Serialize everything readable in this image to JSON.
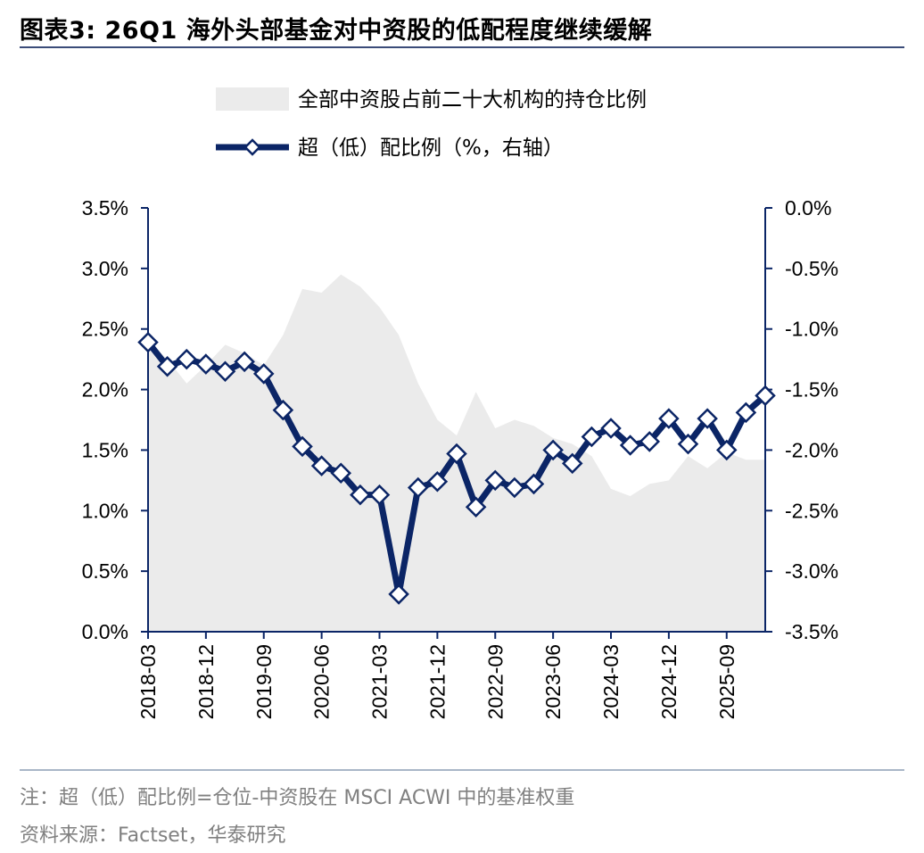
{
  "header": {
    "title": "图表3:  26Q1 海外头部基金对中资股的低配程度继续缓解"
  },
  "footer": {
    "note": "注：超（低）配比例=仓位-中资股在 MSCI ACWI 中的基准权重",
    "source": "资料来源：Factset，华泰研究"
  },
  "colors": {
    "area": "#ebebeb",
    "line": "#0b2566",
    "marker_fill": "#ffffff",
    "axis": "#0b2566",
    "title_rule": "#3b4c79",
    "footer_rule": "#a9b6c7"
  },
  "chart_data": {
    "type": "area+line",
    "legend": [
      "全部中资股占前二十大机构的持仓比例",
      "超（低）配比例（%，右轴）"
    ],
    "legend_position": "top",
    "grid": false,
    "x": [
      "2018-03",
      "2018-06",
      "2018-09",
      "2018-12",
      "2019-03",
      "2019-06",
      "2019-09",
      "2019-12",
      "2020-03",
      "2020-06",
      "2020-09",
      "2020-12",
      "2021-03",
      "2021-06",
      "2021-09",
      "2021-12",
      "2022-03",
      "2022-06",
      "2022-09",
      "2022-12",
      "2023-03",
      "2023-06",
      "2023-09",
      "2023-12",
      "2024-03",
      "2024-06",
      "2024-09",
      "2024-12",
      "2025-03",
      "2025-06",
      "2025-09",
      "2025-12",
      "2026-03"
    ],
    "x_tick_labels": [
      "2018-03",
      "2018-12",
      "2019-09",
      "2020-06",
      "2021-03",
      "2021-12",
      "2022-09",
      "2023-06",
      "2024-03",
      "2024-12",
      "2025-09"
    ],
    "left_axis": {
      "ylim": [
        0,
        3.5
      ],
      "ticks": [
        "0.0%",
        "0.5%",
        "1.0%",
        "1.5%",
        "2.0%",
        "2.5%",
        "3.0%",
        "3.5%"
      ]
    },
    "right_axis": {
      "ylim": [
        -3.5,
        0
      ],
      "ticks": [
        "-3.5%",
        "-3.0%",
        "-2.5%",
        "-2.0%",
        "-1.5%",
        "-1.0%",
        "-0.5%",
        "0.0%"
      ]
    },
    "series": [
      {
        "name": "全部中资股占前二十大机构的持仓比例",
        "type": "area",
        "axis": "left",
        "values": [
          2.4,
          2.25,
          2.05,
          2.2,
          2.37,
          2.3,
          2.2,
          2.45,
          2.83,
          2.8,
          2.95,
          2.85,
          2.68,
          2.45,
          2.05,
          1.75,
          1.62,
          1.98,
          1.68,
          1.75,
          1.7,
          1.6,
          1.55,
          1.45,
          1.18,
          1.12,
          1.22,
          1.25,
          1.45,
          1.35,
          1.48,
          1.42,
          1.42
        ]
      },
      {
        "name": "超（低）配比例（%，右轴）",
        "type": "line",
        "axis": "right",
        "values": [
          -1.11,
          -1.31,
          -1.25,
          -1.29,
          -1.35,
          -1.27,
          -1.37,
          -1.67,
          -1.97,
          -2.13,
          -2.19,
          -2.37,
          -2.37,
          -3.19,
          -2.31,
          -2.26,
          -2.03,
          -2.47,
          -2.25,
          -2.31,
          -2.28,
          -2.0,
          -2.11,
          -1.89,
          -1.82,
          -1.96,
          -1.93,
          -1.74,
          -1.95,
          -1.74,
          -2.0,
          -1.69,
          -1.55
        ]
      }
    ]
  }
}
